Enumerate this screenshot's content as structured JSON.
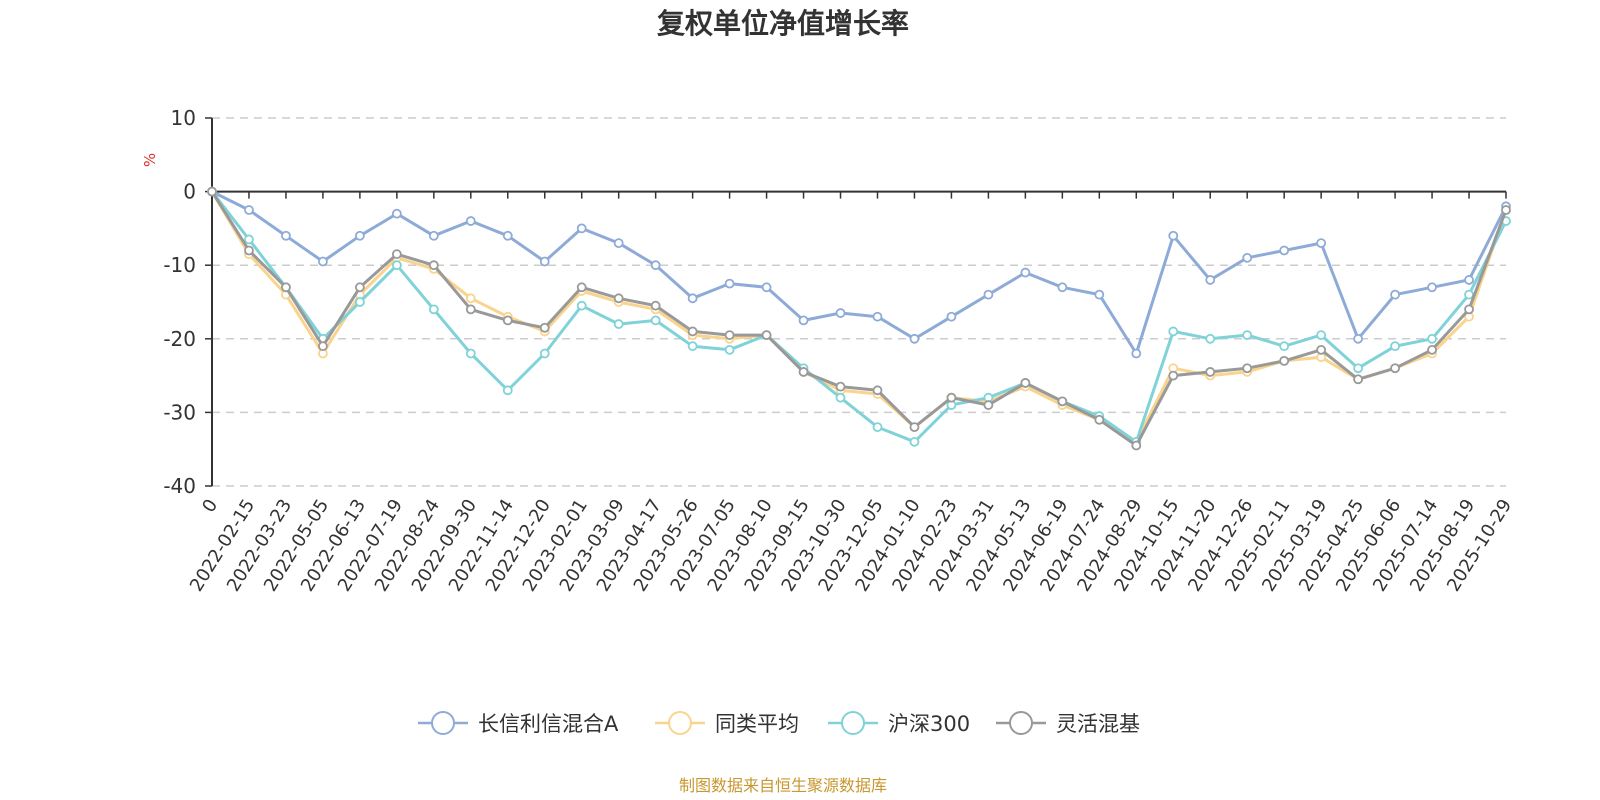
{
  "chart_data": {
    "type": "line",
    "title": "复权单位净值增长率",
    "ylabel": "%",
    "ylim": [
      -40,
      10
    ],
    "yticks": [
      10,
      0,
      -10,
      -20,
      -30,
      -40
    ],
    "xtick_labels": [
      "0",
      "2022-02-15",
      "2022-03-23",
      "2022-05-05",
      "2022-06-13",
      "2022-07-19",
      "2022-08-24",
      "2022-09-30",
      "2022-11-14",
      "2022-12-20",
      "2023-02-01",
      "2023-03-09",
      "2023-04-17",
      "2023-05-26",
      "2023-07-05",
      "2023-08-10",
      "2023-09-15",
      "2023-10-30",
      "2023-12-05",
      "2024-01-10",
      "2024-02-23",
      "2024-03-31",
      "2024-05-13",
      "2024-06-19",
      "2024-07-24",
      "2024-08-29",
      "2024-10-15",
      "2024-11-20",
      "2024-12-26",
      "2025-02-11",
      "2025-03-19",
      "2025-04-25",
      "2025-06-06",
      "2025-07-14",
      "2025-08-19",
      "2025-10-29"
    ],
    "series": [
      {
        "name": "长信利信混合A",
        "color": "#8eabd8",
        "values": [
          0,
          -2.5,
          -6,
          -9.5,
          -6,
          -3,
          -6,
          -4,
          -6,
          -9.5,
          -5,
          -7,
          -10,
          -14.5,
          -12.5,
          -13,
          -17.5,
          -16.5,
          -17,
          -20,
          -17,
          -14,
          -11,
          -13,
          -14,
          -22,
          -6,
          -12,
          -9,
          -8,
          -7,
          -20,
          -14,
          -13,
          -12,
          -2
        ]
      },
      {
        "name": "同类平均",
        "color": "#fad38c",
        "values": [
          0,
          -8.5,
          -14,
          -22,
          -14,
          -9,
          -10.5,
          -14.5,
          -17,
          -19,
          -13.5,
          -15,
          -16,
          -19.5,
          -20,
          -19.5,
          -24.5,
          -27,
          -27.5,
          -32,
          -28,
          -28.5,
          -26.5,
          -29,
          -31,
          -34,
          -24,
          -25,
          -24.5,
          -23,
          -22.5,
          -25.5,
          -24,
          -22,
          -17,
          -2.5
        ]
      },
      {
        "name": "沪深300",
        "color": "#7fd3d8",
        "values": [
          0,
          -6.5,
          -13,
          -20,
          -15,
          -10,
          -16,
          -22,
          -27,
          -22,
          -15.5,
          -18,
          -17.5,
          -21,
          -21.5,
          -19.5,
          -24,
          -28,
          -32,
          -34,
          -29,
          -28,
          -26,
          -28.5,
          -30.5,
          -34,
          -19,
          -20,
          -19.5,
          -21,
          -19.5,
          -24,
          -21,
          -20,
          -14,
          -4
        ]
      },
      {
        "name": "灵活混基",
        "color": "#999999",
        "values": [
          0,
          -8,
          -13,
          -21,
          -13,
          -8.5,
          -10,
          -16,
          -17.5,
          -18.5,
          -13,
          -14.5,
          -15.5,
          -19,
          -19.5,
          -19.5,
          -24.5,
          -26.5,
          -27,
          -32,
          -28,
          -29,
          -26,
          -28.5,
          -31,
          -34.5,
          -25,
          -24.5,
          -24,
          -23,
          -21.5,
          -25.5,
          -24,
          -21.5,
          -16,
          -2.5
        ]
      }
    ]
  },
  "source_text": "制图数据来自恒生聚源数据库"
}
